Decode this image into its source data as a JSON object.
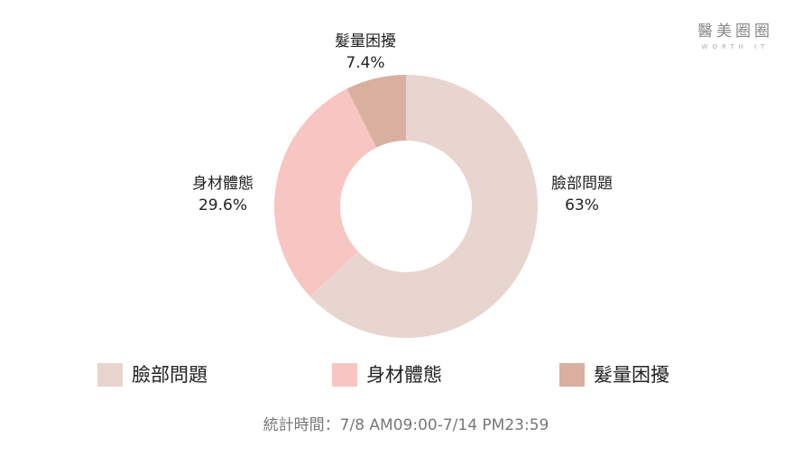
{
  "chart_data": {
    "type": "pie",
    "categories": [
      "臉部問題",
      "身材體態",
      "髮量困擾"
    ],
    "values": [
      63,
      29.6,
      7.4
    ],
    "value_labels": [
      "63%",
      "29.6%",
      "7.4%"
    ],
    "colors": [
      "#e8d5d0",
      "#f7c5c2",
      "#d9b0a0"
    ],
    "legend": "bottom"
  },
  "footnote": "統計時間：7/8 AM09:00-7/14 PM23:59",
  "brand": {
    "name": "醫美圈圈",
    "tagline": "WORTH IT"
  }
}
